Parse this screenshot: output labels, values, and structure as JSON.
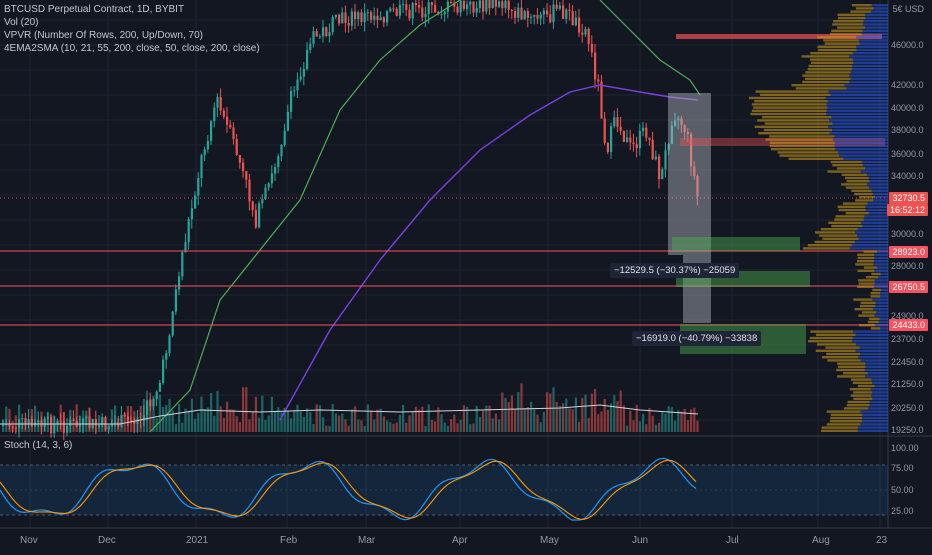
{
  "legend": {
    "symbol": "BTCUSD Perpetual Contract, 1D, BYBIT",
    "vol": "Vol (20)",
    "vpvr": "VPVR (Number Of Rows, 200, Up/Down, 70)",
    "ema": "4EMA2SMA (10, 21, 55, 200, close, 50, close, 200, close)",
    "stoch": "Stoch (14, 3, 6)"
  },
  "corner": "5€ USD",
  "price_axis": [
    "46000.0",
    "42000.0",
    "40000.0",
    "38000.0",
    "36000.0",
    "34000.0",
    "30000.0",
    "28000.0",
    "24900.0",
    "23700.0",
    "22450.0",
    "21250.0",
    "20250.0",
    "19250.0"
  ],
  "tags": {
    "current_price": "32730.5",
    "countdown": "16:52:12",
    "level1": "28923.0",
    "level2": "26750.5",
    "level3": "24433.0"
  },
  "stoch_axis": [
    "100.00",
    "75.00",
    "50.00",
    "25.00"
  ],
  "time_axis": [
    "Nov",
    "Dec",
    "2021",
    "Feb",
    "Mar",
    "Apr",
    "May",
    "Jun",
    "Jul",
    "Aug",
    "23"
  ],
  "measurements": {
    "m1": "−12529.5 (−30.37%) −25059",
    "m2": "−16919.0 (−40.79%) −33838"
  },
  "colors": {
    "background": "#131722",
    "up": "#26a69a",
    "down": "#ef5350",
    "ema_green": "#4caf50",
    "ema_purple": "#7b3fe4",
    "vp_yellow": "#d4a017",
    "vp_blue": "#2962ff",
    "level_line": "#f7525f"
  }
}
